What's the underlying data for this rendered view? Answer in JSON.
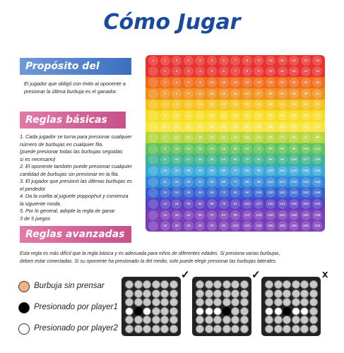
{
  "title": "Cómo Jugar",
  "sections": {
    "purpose": {
      "heading": "Propósito del juego",
      "text": [
        "El jugador que obligó con éxito al oponente a",
        "presionar la última burbuja es el ganador."
      ]
    },
    "basic": {
      "heading": "Reglas básicas",
      "lines": [
        "1. Cada jugador se turna para presionar cualquier",
        "número de burbujas en cualquier fila.",
        "(puede presionar todas las burbujas seguidas",
        "si es necesario)",
        "2. El oponente también puede presionar cualquier",
        "cantidad de burbujas sin presionar en la fila.",
        "3. El jugador que presionó las últimas burbujas es",
        "el perdedor",
        "4. Da la vuelta al juguete poppophut y comienza",
        "la siguiente ronda.",
        "5. Por lo general, adopte la regla de ganar",
        "3 de 5 juegos"
      ]
    },
    "advanced": {
      "heading": "Reglas avanzadas",
      "lines": [
        "Esta regla es más difícil que la regla básica y es adecuada para niños de diferentes edades. Si presiona varias burbujas,",
        "deben estar conectadas. Si su oponente ha presionado la del medio, solo puede elegir presionar las burbujas laterales."
      ]
    }
  },
  "legend": [
    {
      "label": "Burbuja sin prensar",
      "color": "#f4b183"
    },
    {
      "label": "Presionado por player1",
      "color": "#000000"
    },
    {
      "label": "Presionado por player2",
      "color": "#ffffff"
    }
  ],
  "marks": [
    "✓",
    "✓",
    "x"
  ],
  "board": {
    "corner": "x",
    "header": [
      "1",
      "2",
      "3",
      "4",
      "5",
      "6",
      "7",
      "8",
      "9",
      "10",
      "11",
      "12",
      "13",
      "14"
    ],
    "rows": [
      [
        "1",
        "2",
        "3",
        "4",
        "5",
        "6",
        "7",
        "8",
        "9",
        "10",
        "11",
        "12",
        "13",
        "14"
      ],
      [
        "2",
        "4",
        "6",
        "8",
        "10",
        "12",
        "14",
        "16",
        "18",
        "20",
        "22",
        "24",
        "26",
        "28"
      ],
      [
        "3",
        "6",
        "9",
        "12",
        "15",
        "18",
        "21",
        "24",
        "27",
        "30",
        "33",
        "36",
        "39",
        "42"
      ],
      [
        "4",
        "8",
        "12",
        "16",
        "20",
        "24",
        "28",
        "32",
        "36",
        "40",
        "44",
        "48",
        "52",
        "56"
      ],
      [
        "5",
        "10",
        "15",
        "20",
        "25",
        "30",
        "35",
        "40",
        "45",
        "50",
        "55",
        "60",
        "65",
        "70"
      ],
      [
        "6",
        "12",
        "18",
        "24",
        "30",
        "36",
        "42",
        "48",
        "54",
        "60",
        "66",
        "72",
        "78",
        "84"
      ],
      [
        "7",
        "14",
        "21",
        "28",
        "35",
        "42",
        "49",
        "56",
        "63",
        "70",
        "77",
        "84",
        "91",
        "98"
      ],
      [
        "8",
        "16",
        "24",
        "32",
        "40",
        "48",
        "56",
        "64",
        "72",
        "80",
        "88",
        "96",
        "104",
        "112"
      ],
      [
        "9",
        "18",
        "27",
        "36",
        "45",
        "54",
        "63",
        "72",
        "81",
        "90",
        "99",
        "108",
        "117",
        "126"
      ],
      [
        "10",
        "20",
        "30",
        "40",
        "50",
        "60",
        "70",
        "80",
        "90",
        "100",
        "110",
        "120",
        "130",
        "140"
      ],
      [
        "11",
        "22",
        "33",
        "44",
        "55",
        "66",
        "77",
        "88",
        "99",
        "110",
        "121",
        "132",
        "143",
        "154"
      ],
      [
        "12",
        "24",
        "36",
        "48",
        "60",
        "72",
        "84",
        "96",
        "108",
        "120",
        "132",
        "144",
        "156",
        "168"
      ],
      [
        "13",
        "26",
        "39",
        "52",
        "65",
        "78",
        "91",
        "104",
        "117",
        "130",
        "143",
        "156",
        "169",
        "182"
      ],
      [
        "14",
        "28",
        "42",
        "56",
        "70",
        "84",
        "98",
        "112",
        "126",
        "140",
        "154",
        "168",
        "182",
        "196"
      ],
      [
        "15",
        "30",
        "45",
        "60",
        "75",
        "90",
        "105",
        "120",
        "135",
        "150",
        "165",
        "180",
        "195",
        "210"
      ]
    ],
    "row_colors": [
      "#e8322f",
      "#e8322f",
      "#f26a1c",
      "#f28f1c",
      "#f5c21a",
      "#f7dd22",
      "#f7e53a",
      "#b4d63b",
      "#5fc259",
      "#3cb48c",
      "#36a8d6",
      "#2f86d8",
      "#2f5fd0",
      "#5a3fc4",
      "#7a3cb8",
      "#7a3cb8"
    ]
  },
  "mini_boards": [
    {
      "p1": [
        [
          3,
          1
        ]
      ],
      "p2": [
        [
          3,
          0
        ],
        [
          3,
          2
        ]
      ]
    },
    {
      "p1": [
        [
          3,
          3
        ]
      ],
      "p2": [
        [
          3,
          0
        ],
        [
          3,
          1
        ],
        [
          3,
          2
        ]
      ]
    },
    {
      "p1": [
        [
          3,
          2
        ]
      ],
      "p2": [
        [
          3,
          0
        ],
        [
          3,
          1
        ],
        [
          3,
          3
        ],
        [
          3,
          4
        ]
      ]
    }
  ]
}
